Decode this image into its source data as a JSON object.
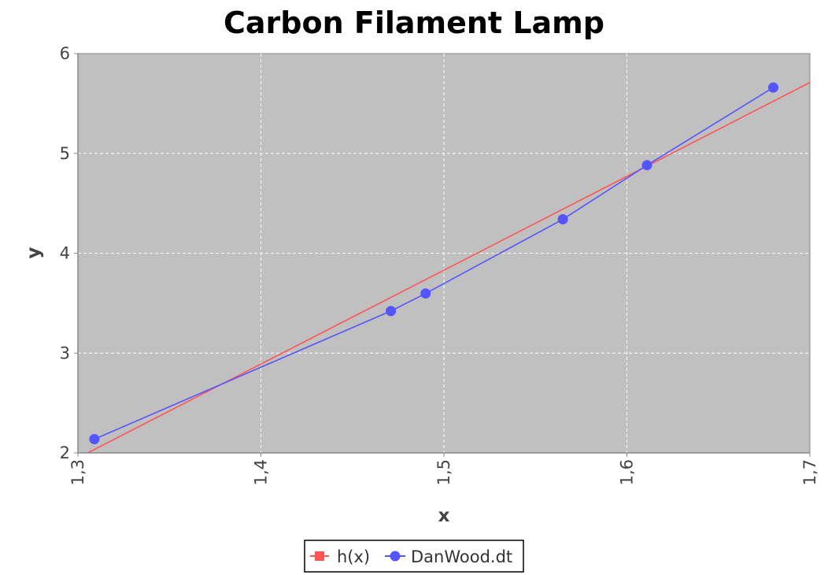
{
  "chart_data": {
    "type": "line",
    "title": "Carbon Filament Lamp",
    "xlabel": "x",
    "ylabel": "y",
    "xlim": [
      1.3,
      1.7
    ],
    "ylim": [
      2,
      6
    ],
    "x_ticks": [
      "1,3",
      "1,4",
      "1,5",
      "1,6",
      "1,7"
    ],
    "x_tick_values": [
      1.3,
      1.4,
      1.5,
      1.6,
      1.7
    ],
    "y_ticks": [
      "2",
      "3",
      "4",
      "5",
      "6"
    ],
    "y_tick_values": [
      2,
      3,
      4,
      5,
      6
    ],
    "grid": true,
    "legend_position": "bottom-center",
    "series": [
      {
        "name": "h(x)",
        "kind": "line",
        "color": "#ff5555",
        "x": [
          1.3,
          1.7
        ],
        "y": [
          1.95,
          5.71
        ]
      },
      {
        "name": "DanWood.dt",
        "kind": "line-markers",
        "color": "#5555ff",
        "x": [
          1.309,
          1.471,
          1.49,
          1.565,
          1.611,
          1.68
        ],
        "y": [
          2.138,
          3.421,
          3.597,
          4.34,
          4.882,
          5.66
        ]
      }
    ]
  },
  "colors": {
    "plot_background": "#c0c0c0",
    "grid": "#ffffff",
    "axis": "#888888"
  }
}
